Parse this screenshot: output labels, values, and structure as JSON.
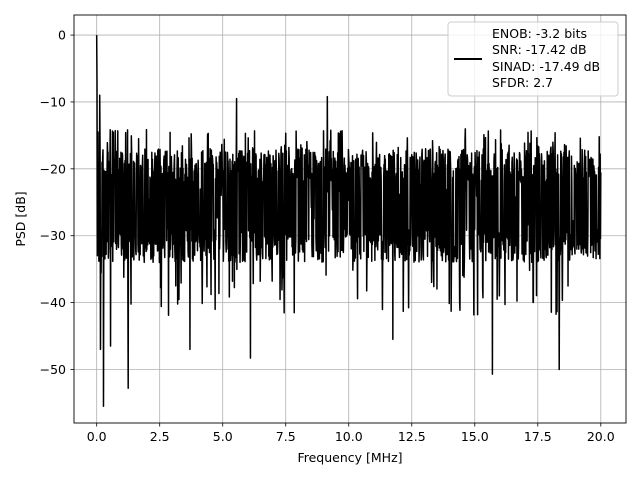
{
  "chart_data": {
    "type": "line",
    "title": "",
    "xlabel": "Frequency [MHz]",
    "ylabel": "PSD [dB]",
    "xlim": [
      -0.9,
      21.0
    ],
    "ylim": [
      -58,
      3
    ],
    "xticks": [
      0.0,
      2.5,
      5.0,
      7.5,
      10.0,
      12.5,
      15.0,
      17.5,
      20.0
    ],
    "xtick_labels": [
      "0.0",
      "2.5",
      "5.0",
      "7.5",
      "10.0",
      "12.5",
      "15.0",
      "17.5",
      "20.0"
    ],
    "yticks": [
      0,
      -10,
      -20,
      -30,
      -40,
      -50
    ],
    "ytick_labels": [
      "0",
      "−10",
      "−20",
      "−30",
      "−40",
      "−50"
    ],
    "grid": true,
    "legend_position": "top-right",
    "legend": [
      "ENOB: -3.2 bits",
      "SNR: -17.42 dB",
      "SINAD: -17.49 dB",
      "SFDR: 2.7"
    ],
    "series": [
      {
        "color": "#000000",
        "description_points": {
          "x_range": [
            0.0,
            20.0
          ],
          "peak": {
            "x": 0.0,
            "y": 0.0
          },
          "typical_band": [
            -33,
            -16
          ],
          "noise_mean": -24,
          "notable_dips": [
            {
              "x": 0.27,
              "y": -55.5
            },
            {
              "x": 0.15,
              "y": -47
            },
            {
              "x": 0.55,
              "y": -46.5
            },
            {
              "x": 1.25,
              "y": -52.8
            },
            {
              "x": 3.7,
              "y": -47
            },
            {
              "x": 6.1,
              "y": -48.3
            },
            {
              "x": 11.75,
              "y": -45.5
            },
            {
              "x": 15.7,
              "y": -50.7
            },
            {
              "x": 18.35,
              "y": -50.0
            }
          ],
          "notable_peaks": [
            {
              "x": 5.55,
              "y": -9.5
            },
            {
              "x": 9.15,
              "y": -9.2
            },
            {
              "x": 0.12,
              "y": -9.0
            },
            {
              "x": 0.05,
              "y": -14.5
            }
          ]
        }
      }
    ]
  }
}
